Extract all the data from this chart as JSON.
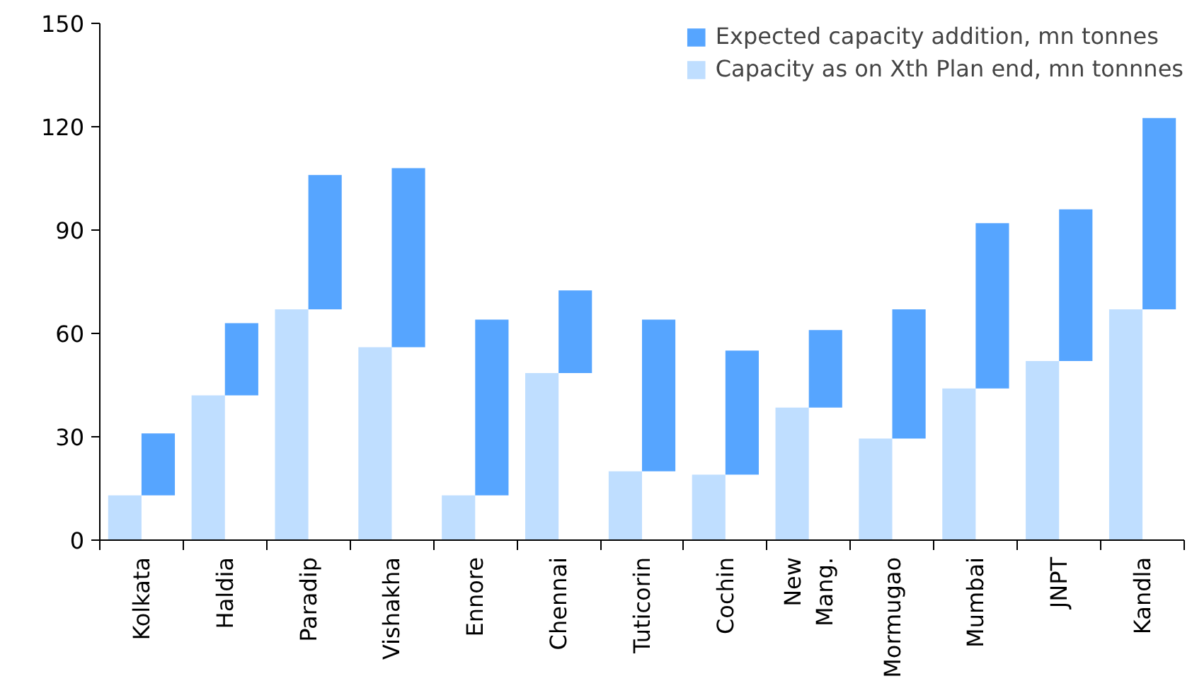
{
  "chart_data": {
    "type": "bar",
    "categories": [
      "Kolkata",
      "Haldia",
      "Paradip",
      "Vishakha",
      "Ennore",
      "Chennai",
      "Tuticorin",
      "Cochin",
      "New\nMang.",
      "Mormugao",
      "Mumbai",
      "JNPT",
      "Kandla"
    ],
    "series": [
      {
        "name": "Capacity as on Xth Plan end, mn tonnnes",
        "color": "#bfdeff",
        "values": [
          13,
          42,
          67,
          56,
          13,
          48.5,
          20,
          19,
          38.5,
          29.5,
          44,
          52,
          67
        ]
      },
      {
        "name": "Expected capacity addition, mn tonnes",
        "color": "#56a5ff",
        "base": [
          13,
          42,
          67,
          56,
          13,
          48.5,
          20,
          19,
          38.5,
          29.5,
          44,
          52,
          67
        ],
        "values": [
          18,
          21,
          39,
          52,
          51,
          24,
          44,
          36,
          22.5,
          37.5,
          48,
          44,
          55.5
        ]
      }
    ],
    "ylim": [
      0,
      150
    ],
    "yticks": [
      0,
      30,
      60,
      90,
      120,
      150
    ],
    "grid": false,
    "legend": "top right"
  }
}
